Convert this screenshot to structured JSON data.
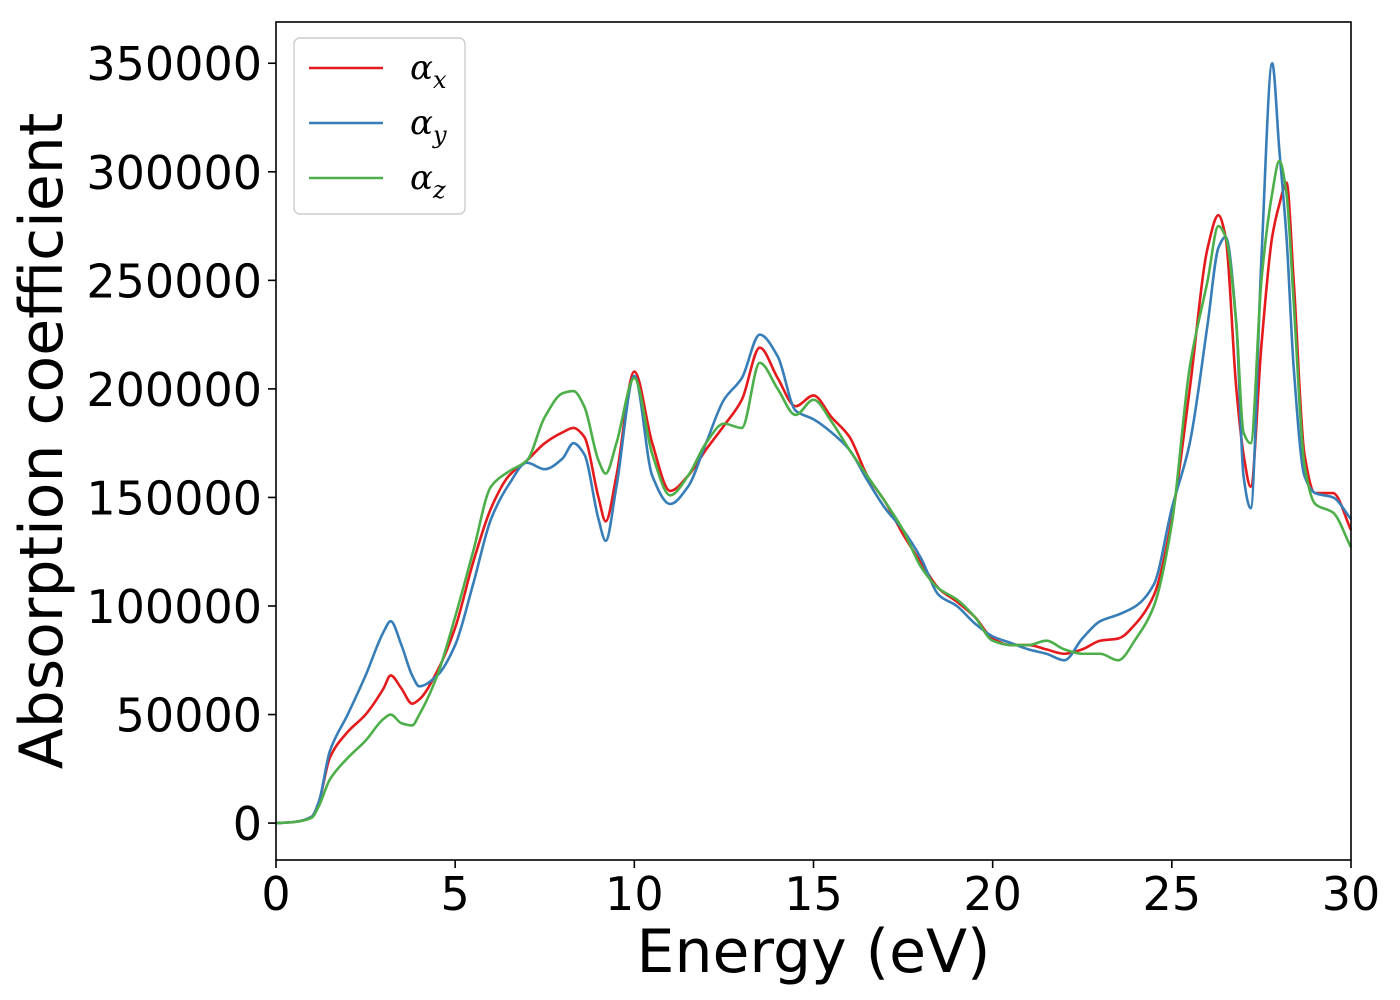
{
  "chart_data": {
    "type": "line",
    "xlabel": "Energy (eV)",
    "ylabel": "Absorption coefficient",
    "xlim": [
      0,
      30
    ],
    "ylim": [
      -17000,
      369000
    ],
    "xticks": [
      0,
      5,
      10,
      15,
      20,
      25,
      30
    ],
    "yticks": [
      0,
      50000,
      100000,
      150000,
      200000,
      250000,
      300000,
      350000
    ],
    "grid": false,
    "legend_position": "top-left",
    "series": [
      {
        "name": "αx",
        "base": "α",
        "sub": "x",
        "color": "#e41a1c",
        "x": [
          0,
          0.5,
          1.0,
          1.2,
          1.5,
          2.0,
          2.5,
          3.0,
          3.2,
          3.5,
          3.8,
          4.0,
          4.5,
          5.0,
          5.5,
          6.0,
          6.5,
          7.0,
          7.5,
          8.0,
          8.3,
          8.6,
          9.0,
          9.2,
          9.5,
          10.0,
          10.5,
          11.0,
          11.5,
          12.0,
          12.5,
          13.0,
          13.5,
          14.0,
          14.5,
          15.0,
          15.5,
          16.0,
          16.5,
          17.0,
          17.5,
          18.0,
          18.5,
          19.0,
          19.5,
          20.0,
          20.5,
          21.0,
          21.5,
          22.0,
          22.5,
          23.0,
          23.5,
          24.0,
          24.5,
          25.0,
          25.5,
          26.0,
          26.3,
          26.5,
          26.8,
          27.0,
          27.2,
          27.5,
          27.8,
          28.0,
          28.2,
          28.4,
          28.7,
          29.0,
          29.5,
          30.0
        ],
        "y": [
          0,
          500,
          3000,
          10000,
          30000,
          42000,
          50000,
          62000,
          68000,
          62000,
          55000,
          57000,
          70000,
          90000,
          120000,
          145000,
          160000,
          167000,
          175000,
          180000,
          182000,
          178000,
          150000,
          139000,
          160000,
          208000,
          175000,
          153000,
          160000,
          172000,
          183000,
          195000,
          219000,
          205000,
          192000,
          197000,
          187000,
          178000,
          160000,
          148000,
          133000,
          120000,
          108000,
          102000,
          95000,
          85000,
          82000,
          82000,
          80000,
          78000,
          80000,
          84000,
          85000,
          92000,
          105000,
          140000,
          200000,
          265000,
          280000,
          270000,
          200000,
          170000,
          155000,
          220000,
          270000,
          285000,
          295000,
          250000,
          170000,
          152000,
          152000,
          135000
        ]
      },
      {
        "name": "αy",
        "base": "α",
        "sub": "y",
        "color": "#377eb8",
        "x": [
          0,
          0.5,
          1.0,
          1.2,
          1.5,
          2.0,
          2.5,
          3.0,
          3.2,
          3.5,
          3.8,
          4.0,
          4.5,
          5.0,
          5.5,
          6.0,
          6.5,
          7.0,
          7.5,
          8.0,
          8.3,
          8.6,
          9.0,
          9.2,
          9.5,
          10.0,
          10.5,
          11.0,
          11.5,
          12.0,
          12.5,
          13.0,
          13.5,
          14.0,
          14.5,
          15.0,
          15.5,
          16.0,
          16.5,
          17.0,
          17.5,
          18.0,
          18.5,
          19.0,
          19.5,
          20.0,
          20.5,
          21.0,
          21.5,
          22.0,
          22.5,
          23.0,
          23.5,
          24.0,
          24.5,
          25.0,
          25.5,
          26.0,
          26.3,
          26.5,
          26.8,
          27.0,
          27.2,
          27.5,
          27.8,
          28.0,
          28.2,
          28.4,
          28.7,
          29.0,
          29.5,
          30.0
        ],
        "y": [
          0,
          500,
          3000,
          10000,
          33000,
          50000,
          68000,
          88000,
          93000,
          82000,
          68000,
          63000,
          68000,
          82000,
          110000,
          140000,
          156000,
          166000,
          163000,
          168000,
          175000,
          170000,
          140000,
          130000,
          155000,
          206000,
          160000,
          147000,
          155000,
          175000,
          195000,
          205000,
          225000,
          215000,
          190000,
          186000,
          180000,
          172000,
          158000,
          145000,
          135000,
          122000,
          105000,
          100000,
          92000,
          86000,
          83000,
          80000,
          78000,
          75000,
          85000,
          93000,
          96000,
          100000,
          110000,
          145000,
          175000,
          230000,
          265000,
          270000,
          230000,
          160000,
          145000,
          260000,
          350000,
          310000,
          270000,
          210000,
          160000,
          152000,
          150000,
          140000
        ]
      },
      {
        "name": "αz",
        "base": "α",
        "sub": "z",
        "color": "#4daf4a",
        "x": [
          0,
          0.5,
          1.0,
          1.2,
          1.5,
          2.0,
          2.5,
          3.0,
          3.2,
          3.5,
          3.8,
          4.0,
          4.5,
          5.0,
          5.5,
          6.0,
          6.5,
          7.0,
          7.5,
          8.0,
          8.3,
          8.6,
          9.0,
          9.2,
          9.5,
          10.0,
          10.5,
          11.0,
          11.5,
          12.0,
          12.5,
          13.0,
          13.5,
          14.0,
          14.5,
          15.0,
          15.5,
          16.0,
          16.5,
          17.0,
          17.5,
          18.0,
          18.5,
          19.0,
          19.5,
          20.0,
          20.5,
          21.0,
          21.5,
          22.0,
          22.5,
          23.0,
          23.5,
          24.0,
          24.5,
          25.0,
          25.5,
          26.0,
          26.3,
          26.5,
          26.8,
          27.0,
          27.2,
          27.5,
          27.8,
          28.0,
          28.2,
          28.4,
          28.7,
          29.0,
          29.5,
          30.0
        ],
        "y": [
          0,
          500,
          2500,
          8000,
          20000,
          30000,
          38000,
          48000,
          50000,
          46000,
          45000,
          50000,
          68000,
          95000,
          125000,
          155000,
          162000,
          167000,
          187000,
          198000,
          199000,
          192000,
          167000,
          161000,
          175000,
          205000,
          170000,
          151000,
          160000,
          175000,
          184000,
          182000,
          212000,
          200000,
          188000,
          195000,
          185000,
          172000,
          160000,
          148000,
          135000,
          118000,
          108000,
          103000,
          95000,
          84000,
          82000,
          82000,
          84000,
          80000,
          78000,
          78000,
          75000,
          85000,
          100000,
          138000,
          210000,
          250000,
          275000,
          270000,
          230000,
          180000,
          175000,
          250000,
          290000,
          305000,
          290000,
          240000,
          165000,
          147000,
          143000,
          127000
        ]
      }
    ]
  }
}
